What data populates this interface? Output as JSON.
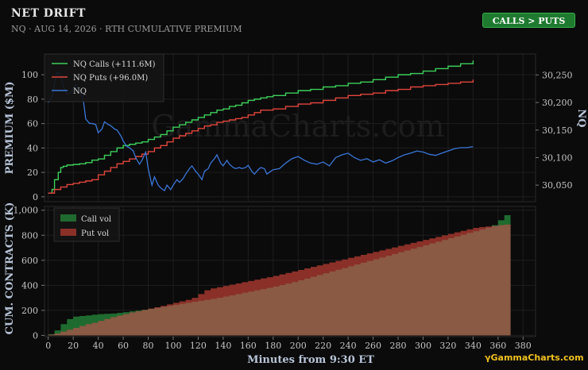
{
  "header": {
    "title": "NET DRIFT",
    "subtitle": "NQ · AUG 14, 2026 · RTH CUMULATIVE PREMIUM",
    "badge": "CALLS > PUTS",
    "watermark": "GammaCharts.com",
    "watermark_icon": "gamma-icon"
  },
  "colors": {
    "background": "#0b0b0b",
    "calls": "#3ccf5a",
    "puts": "#e0453c",
    "nq": "#3a76d8",
    "call_vol": "#1f6b2f",
    "put_vol": "#8a3028",
    "overlap": "#8a5a44",
    "badge": "#1e7a2f"
  },
  "chart_data": [
    {
      "type": "line",
      "ylabel": "PREMIUM ($M)",
      "y2label": "NQ",
      "ylim": [
        -4,
        117
      ],
      "y2lim": [
        30020,
        30288
      ],
      "yticks": [
        0,
        20,
        40,
        60,
        80,
        100
      ],
      "y2ticks": [
        30050,
        30100,
        30150,
        30200,
        30250
      ],
      "y2ticklabels": [
        "30,050",
        "30,100",
        "30,150",
        "30,200",
        "30,250"
      ],
      "grid": true,
      "legend_position": "top-left",
      "background_text": "GammaCharts.com",
      "series": [
        {
          "name": "NQ Calls (+111.6M)",
          "axis": "left",
          "step": true,
          "x": [
            0,
            3,
            5,
            8,
            10,
            12,
            15,
            20,
            25,
            30,
            35,
            40,
            45,
            50,
            55,
            60,
            65,
            70,
            75,
            80,
            85,
            90,
            95,
            100,
            105,
            110,
            115,
            120,
            125,
            130,
            135,
            140,
            145,
            150,
            155,
            160,
            165,
            170,
            175,
            180,
            190,
            200,
            210,
            220,
            230,
            240,
            250,
            260,
            270,
            280,
            290,
            300,
            310,
            320,
            330,
            340
          ],
          "values": [
            3,
            6,
            14,
            20,
            24,
            25,
            26,
            26.5,
            27,
            28,
            30,
            31,
            34,
            37,
            40,
            42,
            43,
            44,
            45,
            47,
            49,
            51,
            54,
            57,
            59,
            61,
            63,
            65,
            67,
            69,
            71,
            72,
            74,
            75,
            77,
            79,
            80,
            81,
            82,
            83,
            85,
            87,
            88,
            90,
            91,
            93,
            94,
            96,
            98,
            100,
            101,
            103,
            105,
            107,
            109,
            111.6
          ]
        },
        {
          "name": "NQ Puts (+96.0M)",
          "axis": "left",
          "step": true,
          "x": [
            0,
            5,
            10,
            15,
            20,
            25,
            30,
            35,
            40,
            45,
            50,
            55,
            60,
            65,
            70,
            75,
            80,
            85,
            90,
            95,
            100,
            105,
            110,
            115,
            120,
            125,
            130,
            135,
            140,
            145,
            150,
            155,
            160,
            165,
            170,
            180,
            190,
            200,
            210,
            220,
            230,
            240,
            250,
            260,
            270,
            280,
            290,
            300,
            310,
            320,
            330,
            340
          ],
          "values": [
            3,
            6,
            8,
            10,
            11,
            12,
            13,
            14,
            18,
            21,
            24,
            27,
            29,
            31,
            33,
            35,
            37,
            40,
            42,
            45,
            48,
            50,
            52,
            54,
            56,
            58,
            59,
            61,
            62,
            63,
            64,
            65,
            67,
            69,
            71,
            72,
            74,
            76,
            77,
            79,
            81,
            83,
            84,
            85,
            87,
            88,
            90,
            91,
            92,
            93,
            94,
            96
          ]
        },
        {
          "name": "NQ",
          "axis": "right",
          "step": false,
          "x": [
            0,
            3,
            5,
            7,
            10,
            12,
            15,
            18,
            20,
            22,
            25,
            28,
            30,
            33,
            35,
            38,
            40,
            43,
            45,
            48,
            50,
            53,
            55,
            58,
            60,
            63,
            65,
            68,
            70,
            73,
            75,
            78,
            80,
            83,
            85,
            88,
            90,
            93,
            95,
            98,
            100,
            103,
            105,
            108,
            110,
            113,
            115,
            118,
            120,
            123,
            125,
            128,
            130,
            133,
            135,
            138,
            140,
            143,
            145,
            148,
            150,
            153,
            155,
            158,
            160,
            163,
            165,
            168,
            170,
            173,
            175,
            178,
            180,
            185,
            190,
            195,
            200,
            205,
            210,
            215,
            220,
            225,
            230,
            235,
            240,
            245,
            250,
            255,
            260,
            265,
            270,
            275,
            280,
            285,
            290,
            295,
            300,
            305,
            310,
            315,
            320,
            325,
            330,
            335,
            340
          ],
          "values": [
            30200,
            30210,
            30235,
            30255,
            30250,
            30230,
            30215,
            30218,
            30226,
            30232,
            30220,
            30205,
            30170,
            30162,
            30162,
            30160,
            30145,
            30152,
            30165,
            30160,
            30158,
            30152,
            30150,
            30140,
            30130,
            30120,
            30118,
            30112,
            30100,
            30088,
            30095,
            30110,
            30080,
            30050,
            30065,
            30050,
            30045,
            30040,
            30050,
            30042,
            30050,
            30060,
            30055,
            30062,
            30070,
            30080,
            30085,
            30075,
            30070,
            30060,
            30075,
            30080,
            30090,
            30098,
            30105,
            30090,
            30085,
            30095,
            30088,
            30082,
            30080,
            30082,
            30080,
            30082,
            30086,
            30075,
            30070,
            30078,
            30082,
            30080,
            30070,
            30075,
            30078,
            30080,
            30090,
            30098,
            30102,
            30095,
            30090,
            30088,
            30092,
            30085,
            30100,
            30105,
            30108,
            30100,
            30095,
            30098,
            30092,
            30096,
            30090,
            30094,
            30100,
            30105,
            30108,
            30112,
            30110,
            30106,
            30104,
            30108,
            30112,
            30116,
            30118,
            30118,
            30120
          ]
        }
      ]
    },
    {
      "type": "area",
      "xlabel": "Minutes from 9:30 ET",
      "ylabel": "CUM. CONTRACTS (K)",
      "xlim": [
        -3,
        390
      ],
      "ylim": [
        -10,
        1030
      ],
      "xticks": [
        0,
        20,
        40,
        60,
        80,
        100,
        120,
        140,
        160,
        180,
        200,
        220,
        240,
        260,
        280,
        300,
        320,
        340,
        360,
        380
      ],
      "yticks": [
        0,
        200,
        400,
        600,
        800,
        1000
      ],
      "yticklabels": [
        "0",
        "200",
        "400",
        "600",
        "800",
        "1,000"
      ],
      "grid": true,
      "legend_position": "top-left",
      "step": true,
      "categories": [
        0,
        5,
        10,
        15,
        20,
        25,
        30,
        35,
        40,
        45,
        50,
        55,
        60,
        65,
        70,
        75,
        80,
        85,
        90,
        95,
        100,
        105,
        110,
        115,
        120,
        125,
        130,
        135,
        140,
        145,
        150,
        155,
        160,
        165,
        170,
        175,
        180,
        185,
        190,
        195,
        200,
        205,
        210,
        215,
        220,
        225,
        230,
        235,
        240,
        245,
        250,
        255,
        260,
        265,
        270,
        275,
        280,
        285,
        290,
        295,
        300,
        305,
        310,
        315,
        320,
        325,
        330,
        335,
        340,
        345,
        350,
        355,
        360,
        365
      ],
      "series": [
        {
          "name": "Call vol",
          "values": [
            10,
            40,
            90,
            130,
            150,
            155,
            160,
            165,
            170,
            172,
            175,
            180,
            186,
            192,
            198,
            205,
            212,
            220,
            228,
            236,
            244,
            252,
            260,
            268,
            276,
            284,
            292,
            300,
            310,
            320,
            330,
            340,
            350,
            360,
            370,
            380,
            390,
            402,
            414,
            426,
            440,
            454,
            468,
            482,
            496,
            510,
            524,
            538,
            552,
            566,
            580,
            594,
            608,
            622,
            636,
            650,
            664,
            678,
            692,
            706,
            720,
            734,
            748,
            762,
            776,
            790,
            804,
            818,
            832,
            846,
            860,
            880,
            920,
            960
          ]
        },
        {
          "name": "Put vol",
          "values": [
            5,
            15,
            30,
            45,
            60,
            75,
            90,
            100,
            115,
            130,
            145,
            158,
            170,
            183,
            193,
            203,
            214,
            225,
            236,
            248,
            260,
            272,
            284,
            300,
            330,
            360,
            375,
            385,
            395,
            405,
            415,
            425,
            435,
            445,
            455,
            465,
            475,
            487,
            499,
            511,
            523,
            535,
            547,
            559,
            571,
            583,
            595,
            607,
            619,
            631,
            643,
            655,
            667,
            679,
            691,
            703,
            715,
            727,
            739,
            751,
            763,
            775,
            787,
            799,
            811,
            823,
            835,
            847,
            859,
            865,
            870,
            875,
            880,
            885
          ]
        }
      ]
    }
  ]
}
